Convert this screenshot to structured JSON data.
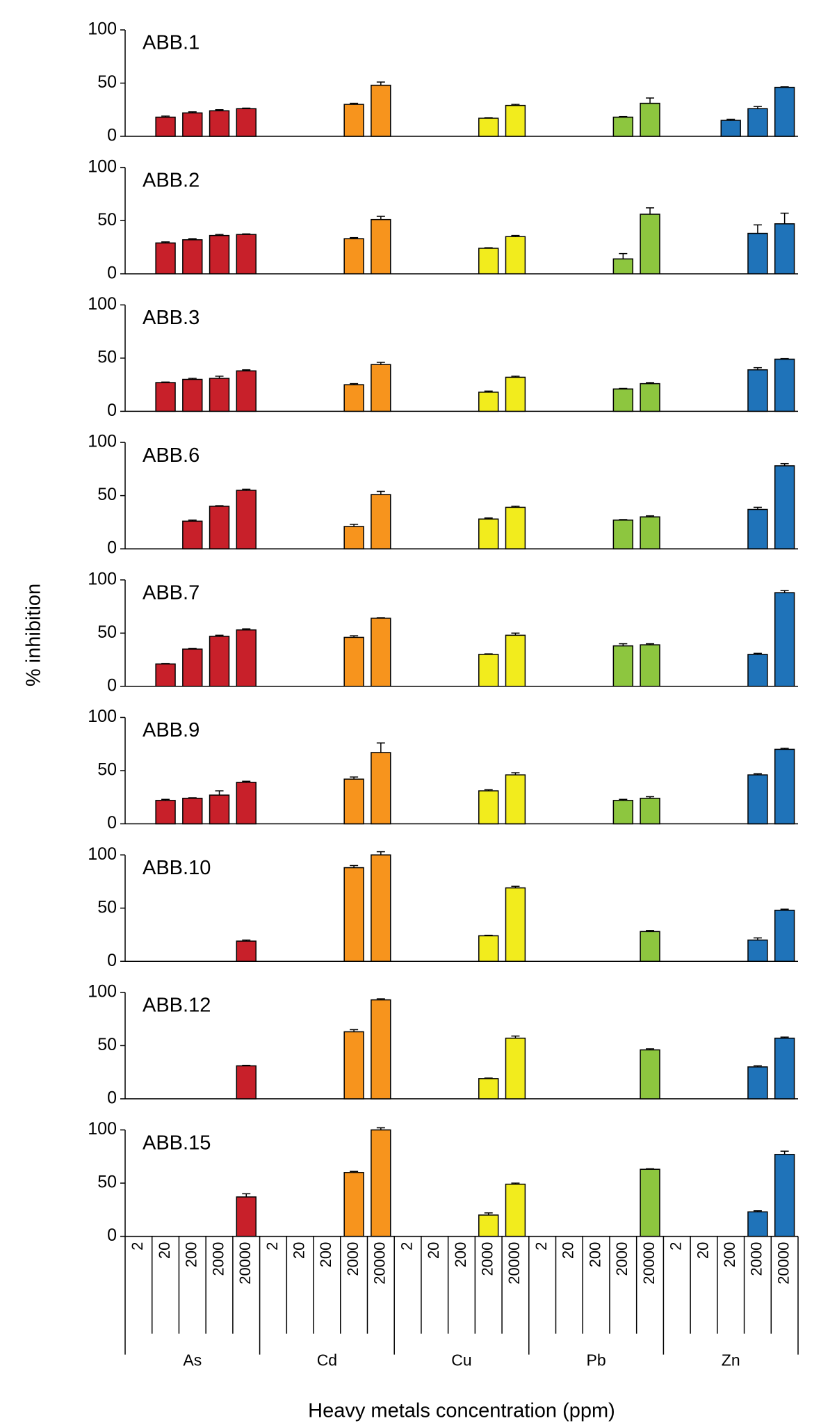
{
  "chart_data": {
    "type": "bar",
    "ylabel": "% inhibition",
    "xlabel": "Heavy metals concentration (ppm)",
    "categories": [
      "2",
      "20",
      "200",
      "2000",
      "20000"
    ],
    "groups": [
      {
        "name": "As",
        "color": "#c8202a"
      },
      {
        "name": "Cd",
        "color": "#f7941d"
      },
      {
        "name": "Cu",
        "color": "#f2ec1d"
      },
      {
        "name": "Pb",
        "color": "#8dc63f"
      },
      {
        "name": "Zn",
        "color": "#1f73b9"
      }
    ],
    "ylim": [
      0,
      100
    ],
    "yticks": [
      0,
      50,
      100
    ],
    "panels": [
      {
        "title": "ABB.1",
        "values": [
          [
            null,
            18,
            22,
            24,
            26
          ],
          [
            null,
            null,
            null,
            30,
            48
          ],
          [
            null,
            null,
            null,
            17,
            29
          ],
          [
            null,
            null,
            null,
            18,
            31
          ],
          [
            null,
            null,
            15,
            26,
            46
          ]
        ],
        "errors": [
          [
            null,
            1,
            1,
            1,
            0.5
          ],
          [
            null,
            null,
            null,
            1,
            3
          ],
          [
            null,
            null,
            null,
            0.5,
            1
          ],
          [
            null,
            null,
            null,
            0.5,
            5
          ],
          [
            null,
            null,
            1,
            2,
            0.5
          ]
        ]
      },
      {
        "title": "ABB.2",
        "values": [
          [
            null,
            29,
            32,
            36,
            37
          ],
          [
            null,
            null,
            null,
            33,
            51
          ],
          [
            null,
            null,
            null,
            24,
            35
          ],
          [
            null,
            null,
            null,
            14,
            56
          ],
          [
            null,
            null,
            0,
            38,
            47
          ]
        ],
        "errors": [
          [
            null,
            1,
            1,
            1,
            0.5
          ],
          [
            null,
            null,
            null,
            1,
            3
          ],
          [
            null,
            null,
            null,
            0.5,
            1
          ],
          [
            null,
            null,
            null,
            5,
            6
          ],
          [
            null,
            null,
            0,
            8,
            10
          ]
        ]
      },
      {
        "title": "ABB.3",
        "values": [
          [
            null,
            27,
            30,
            31,
            38
          ],
          [
            null,
            null,
            null,
            25,
            44
          ],
          [
            null,
            null,
            null,
            18,
            32
          ],
          [
            null,
            null,
            null,
            21,
            26
          ],
          [
            null,
            null,
            null,
            39,
            49
          ]
        ],
        "errors": [
          [
            null,
            0.5,
            1,
            2,
            1
          ],
          [
            null,
            null,
            null,
            1,
            2
          ],
          [
            null,
            null,
            null,
            1,
            1
          ],
          [
            null,
            null,
            null,
            0.5,
            1
          ],
          [
            null,
            null,
            null,
            2,
            0.5
          ]
        ]
      },
      {
        "title": "ABB.6",
        "values": [
          [
            null,
            null,
            26,
            40,
            55
          ],
          [
            null,
            null,
            null,
            21,
            51
          ],
          [
            null,
            null,
            null,
            28,
            39
          ],
          [
            null,
            null,
            null,
            27,
            30
          ],
          [
            null,
            null,
            null,
            37,
            78
          ]
        ],
        "errors": [
          [
            null,
            null,
            1,
            0.5,
            1
          ],
          [
            null,
            null,
            null,
            2,
            3
          ],
          [
            null,
            null,
            null,
            1,
            1
          ],
          [
            null,
            null,
            null,
            0.5,
            1
          ],
          [
            null,
            null,
            null,
            2,
            2
          ]
        ]
      },
      {
        "title": "ABB.7",
        "values": [
          [
            null,
            21,
            35,
            47,
            53
          ],
          [
            null,
            null,
            null,
            46,
            64
          ],
          [
            null,
            null,
            null,
            30,
            48
          ],
          [
            null,
            null,
            null,
            38,
            39
          ],
          [
            null,
            null,
            null,
            30,
            88
          ]
        ],
        "errors": [
          [
            null,
            0.5,
            0.5,
            1,
            1
          ],
          [
            null,
            null,
            null,
            1.5,
            0.5
          ],
          [
            null,
            null,
            null,
            0.5,
            2
          ],
          [
            null,
            null,
            null,
            2,
            1
          ],
          [
            null,
            null,
            null,
            1,
            2
          ]
        ]
      },
      {
        "title": "ABB.9",
        "values": [
          [
            null,
            22,
            24,
            27,
            39
          ],
          [
            null,
            null,
            null,
            42,
            67
          ],
          [
            null,
            null,
            null,
            31,
            46
          ],
          [
            null,
            null,
            null,
            22,
            24
          ],
          [
            null,
            null,
            null,
            46,
            70
          ]
        ],
        "errors": [
          [
            null,
            1,
            0.5,
            4,
            1
          ],
          [
            null,
            null,
            null,
            2,
            9
          ],
          [
            null,
            null,
            null,
            1,
            2
          ],
          [
            null,
            null,
            null,
            1,
            1.5
          ],
          [
            null,
            null,
            null,
            1,
            1
          ]
        ]
      },
      {
        "title": "ABB.10",
        "values": [
          [
            null,
            null,
            null,
            null,
            19
          ],
          [
            null,
            null,
            null,
            88,
            100
          ],
          [
            null,
            null,
            null,
            24,
            69
          ],
          [
            null,
            null,
            null,
            null,
            28
          ],
          [
            null,
            null,
            null,
            20,
            48
          ]
        ],
        "errors": [
          [
            null,
            null,
            null,
            null,
            1
          ],
          [
            null,
            null,
            null,
            2,
            3
          ],
          [
            null,
            null,
            null,
            0.5,
            1.5
          ],
          [
            null,
            null,
            null,
            null,
            1
          ],
          [
            null,
            null,
            null,
            2,
            1
          ]
        ]
      },
      {
        "title": "ABB.12",
        "values": [
          [
            null,
            null,
            null,
            null,
            31
          ],
          [
            null,
            null,
            null,
            63,
            93
          ],
          [
            null,
            null,
            null,
            19,
            57
          ],
          [
            null,
            null,
            null,
            null,
            46
          ],
          [
            null,
            null,
            null,
            30,
            57
          ]
        ],
        "errors": [
          [
            null,
            null,
            null,
            null,
            0.5
          ],
          [
            null,
            null,
            null,
            2,
            1
          ],
          [
            null,
            null,
            null,
            0.5,
            2
          ],
          [
            null,
            null,
            null,
            null,
            1
          ],
          [
            null,
            null,
            null,
            1,
            1
          ]
        ]
      },
      {
        "title": "ABB.15",
        "values": [
          [
            null,
            null,
            null,
            null,
            37
          ],
          [
            null,
            null,
            null,
            60,
            100
          ],
          [
            null,
            null,
            null,
            20,
            49
          ],
          [
            null,
            null,
            null,
            null,
            63
          ],
          [
            null,
            null,
            null,
            23,
            77
          ]
        ],
        "errors": [
          [
            null,
            null,
            null,
            null,
            3
          ],
          [
            null,
            null,
            null,
            1,
            2
          ],
          [
            null,
            null,
            null,
            2,
            1
          ],
          [
            null,
            null,
            null,
            null,
            0.5
          ],
          [
            null,
            null,
            null,
            1,
            3
          ]
        ]
      }
    ]
  }
}
